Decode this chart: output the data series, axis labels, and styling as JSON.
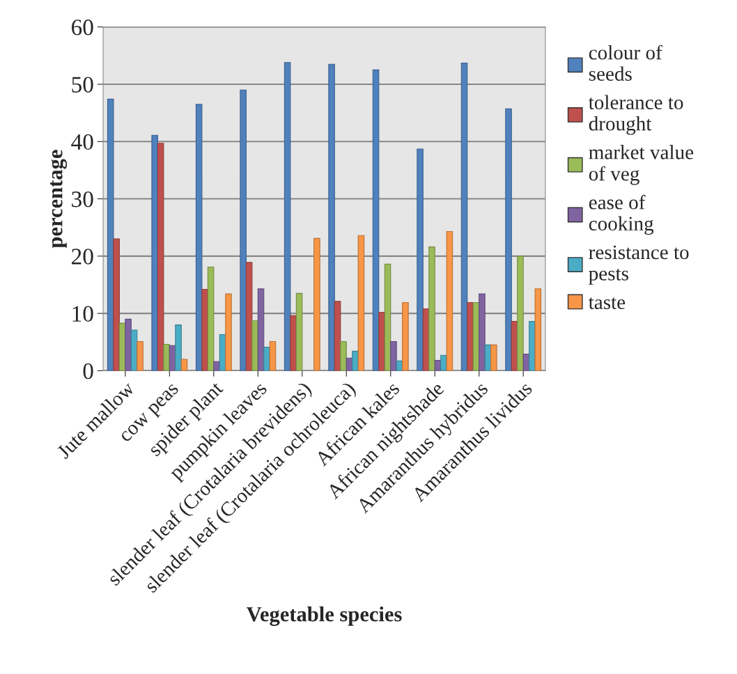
{
  "chart_data": {
    "type": "bar",
    "xlabel": "Vegetable species",
    "ylabel": "percentage",
    "categories": [
      "Jute mallow",
      "cow peas",
      "spider plant",
      "pumpkin leaves",
      "slender leaf (Crotalaria brevidens)",
      "slender leaf (Crotalaria ochroleuca)",
      "African kales",
      "African nightshade",
      "Amaranthus hybridus",
      "Amaranthus lividus"
    ],
    "series": [
      {
        "name": "colour of seeds",
        "color": "#4f81bd",
        "values": [
          47.4,
          41.1,
          46.5,
          49.0,
          53.8,
          53.5,
          52.5,
          38.7,
          53.7,
          45.7
        ]
      },
      {
        "name": "tolerance to drought",
        "color": "#c0504d",
        "values": [
          23.0,
          39.7,
          14.2,
          18.9,
          9.6,
          12.1,
          10.2,
          10.8,
          11.9,
          8.6
        ]
      },
      {
        "name": "market value of veg",
        "color": "#9bbb59",
        "values": [
          8.3,
          4.6,
          18.1,
          8.7,
          13.5,
          5.1,
          18.6,
          21.6,
          11.9,
          20.0
        ]
      },
      {
        "name": "ease of cooking",
        "color": "#8064a2",
        "values": [
          9.0,
          4.4,
          1.6,
          14.3,
          null,
          2.2,
          5.1,
          1.8,
          13.4,
          2.9
        ]
      },
      {
        "name": "resistance to pests",
        "color": "#4bacc6",
        "values": [
          7.1,
          8.0,
          6.3,
          4.1,
          null,
          3.4,
          1.7,
          2.7,
          4.5,
          8.6
        ]
      },
      {
        "name": "taste",
        "color": "#f79646",
        "values": [
          5.1,
          2.0,
          13.4,
          5.1,
          23.1,
          23.6,
          11.9,
          24.3,
          4.5,
          14.3
        ]
      }
    ],
    "ylim": [
      0,
      60
    ],
    "yticks": [
      0,
      10,
      20,
      30,
      40,
      50,
      60
    ],
    "grid": "y",
    "legend": "top right"
  }
}
